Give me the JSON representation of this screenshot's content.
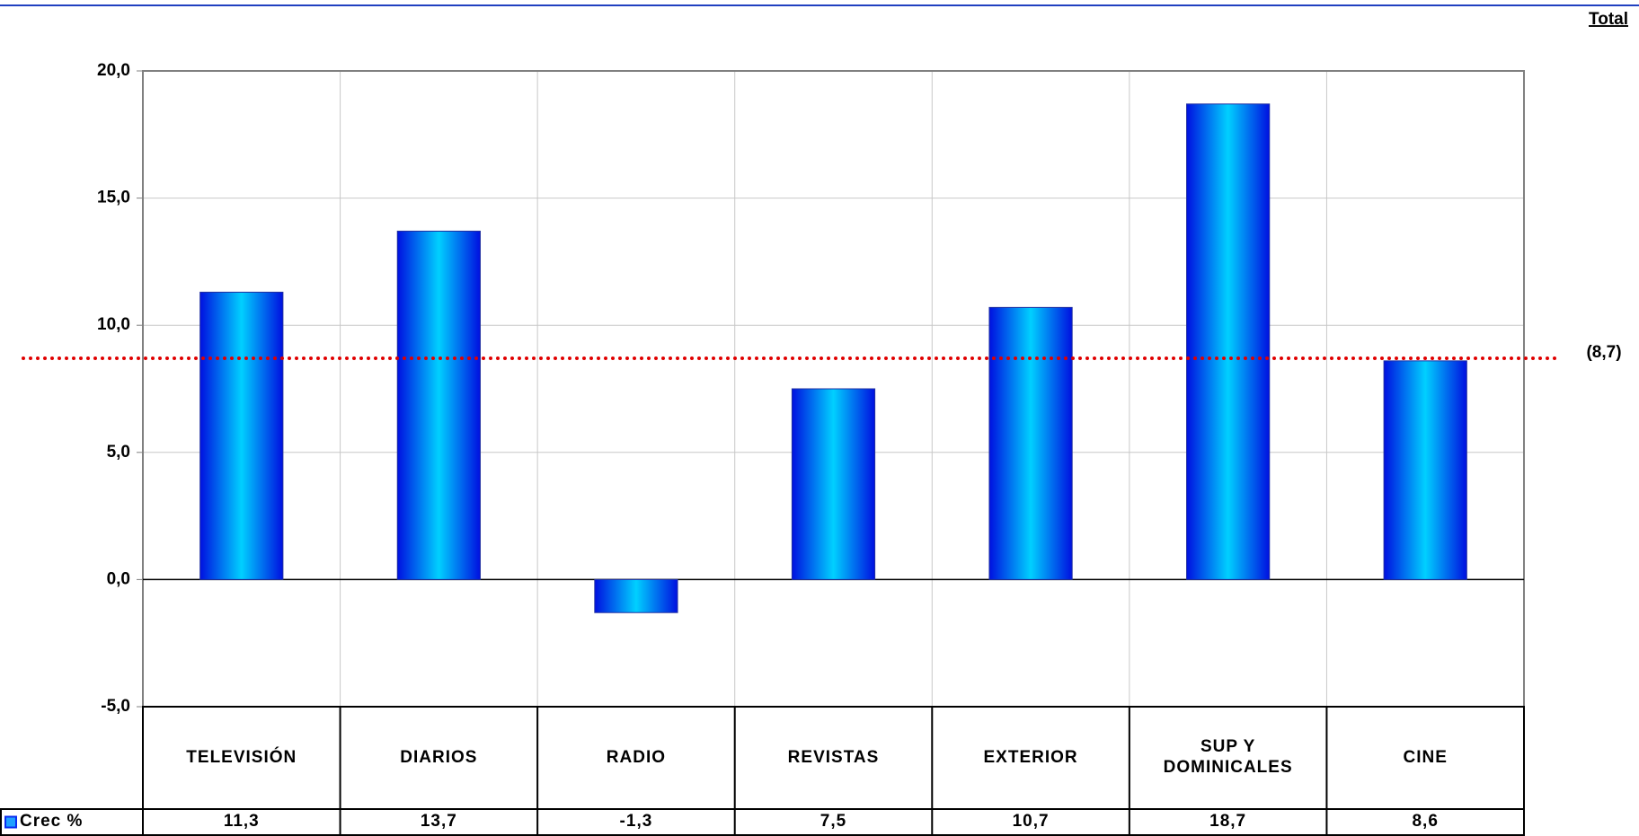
{
  "chart_data": {
    "type": "bar",
    "corner_label": "Total",
    "categories": [
      "TELEVISIÓN",
      "DIARIOS",
      "RADIO",
      "REVISTAS",
      "EXTERIOR",
      "SUP Y DOMINICALES",
      "CINE"
    ],
    "series": [
      {
        "name": "Crec %",
        "color": "#0a2cf0",
        "values": [
          11.3,
          13.7,
          -1.3,
          7.5,
          10.7,
          18.7,
          8.6
        ],
        "value_labels": [
          "11,3",
          "13,7",
          "-1,3",
          "7,5",
          "10,7",
          "18,7",
          "8,6"
        ]
      }
    ],
    "ylim": [
      -5,
      20
    ],
    "yticks": [
      {
        "value": -5,
        "label": "-5,0"
      },
      {
        "value": 0,
        "label": "0,0"
      },
      {
        "value": 5,
        "label": "5,0"
      },
      {
        "value": 10,
        "label": "10,0"
      },
      {
        "value": 15,
        "label": "15,0"
      },
      {
        "value": 20,
        "label": "20,0"
      }
    ],
    "grid": true,
    "reference_line": {
      "value": 8.7,
      "label": "(8,7)",
      "color": "#e00000"
    }
  }
}
